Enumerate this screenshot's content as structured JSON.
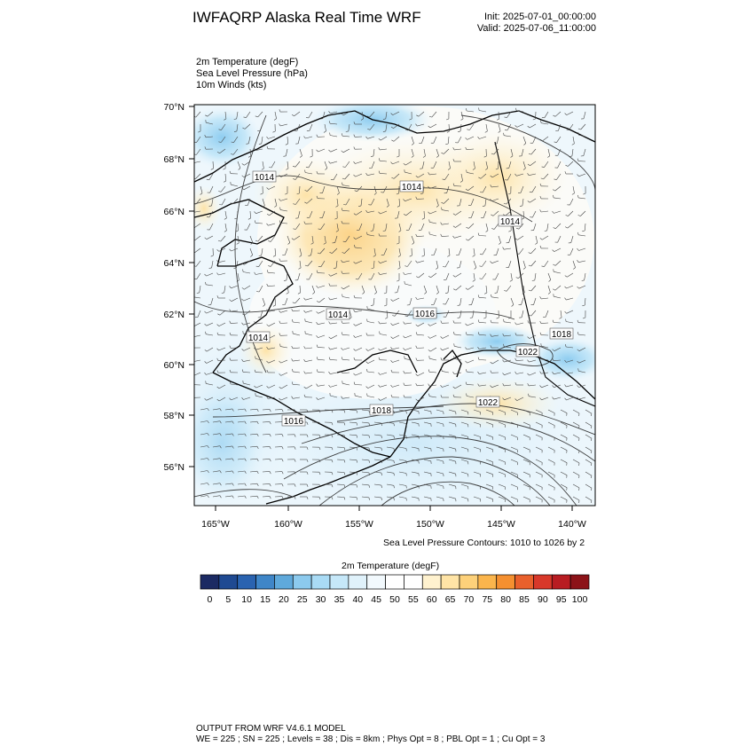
{
  "header": {
    "title": "IWFAQRP Alaska Real Time WRF",
    "init": "Init: 2025-07-01_00:00:00",
    "valid": "Valid: 2025-07-06_11:00:00"
  },
  "variables": [
    "2m Temperature   (degF)",
    "Sea Level Pressure   (hPa)",
    "10m Winds   (kts)"
  ],
  "map": {
    "lat_labels": [
      "70°N",
      "68°N",
      "66°N",
      "64°N",
      "62°N",
      "60°N",
      "58°N",
      "56°N"
    ],
    "lon_labels": [
      "165°W",
      "160°W",
      "155°W",
      "150°W",
      "145°W",
      "140°W"
    ],
    "contour_labels": [
      "1014",
      "1014",
      "1014",
      "1014",
      "1014",
      "1016",
      "1018",
      "1022",
      "1018",
      "1022",
      "1016"
    ],
    "contour_note": "Sea Level Pressure Contours: 1010 to 1026 by 2"
  },
  "colorbar": {
    "title": "2m Temperature  (degF)",
    "labels": [
      "0",
      "5",
      "10",
      "15",
      "20",
      "25",
      "30",
      "35",
      "40",
      "45",
      "50",
      "55",
      "60",
      "65",
      "70",
      "75",
      "80",
      "85",
      "90",
      "95",
      "100"
    ],
    "colors": [
      "#1b2a63",
      "#1f4a92",
      "#2a63b0",
      "#3f86c8",
      "#5fa9db",
      "#8ccaee",
      "#a9dbf5",
      "#c6e8f9",
      "#e0f2fb",
      "#f2f9fd",
      "#ffffff",
      "#ffffff",
      "#fff2cf",
      "#ffe4a6",
      "#fdd17a",
      "#fbb54c",
      "#f59030",
      "#e9602c",
      "#d8382a",
      "#b81c22",
      "#8c1318"
    ]
  },
  "footer": {
    "line1": "OUTPUT FROM WRF V4.6.1 MODEL",
    "line2": "WE = 225 ; SN = 225 ; Levels = 38 ; Dis = 8km ; Phys Opt = 8 ; PBL Opt = 1 ; Cu Opt = 3"
  }
}
